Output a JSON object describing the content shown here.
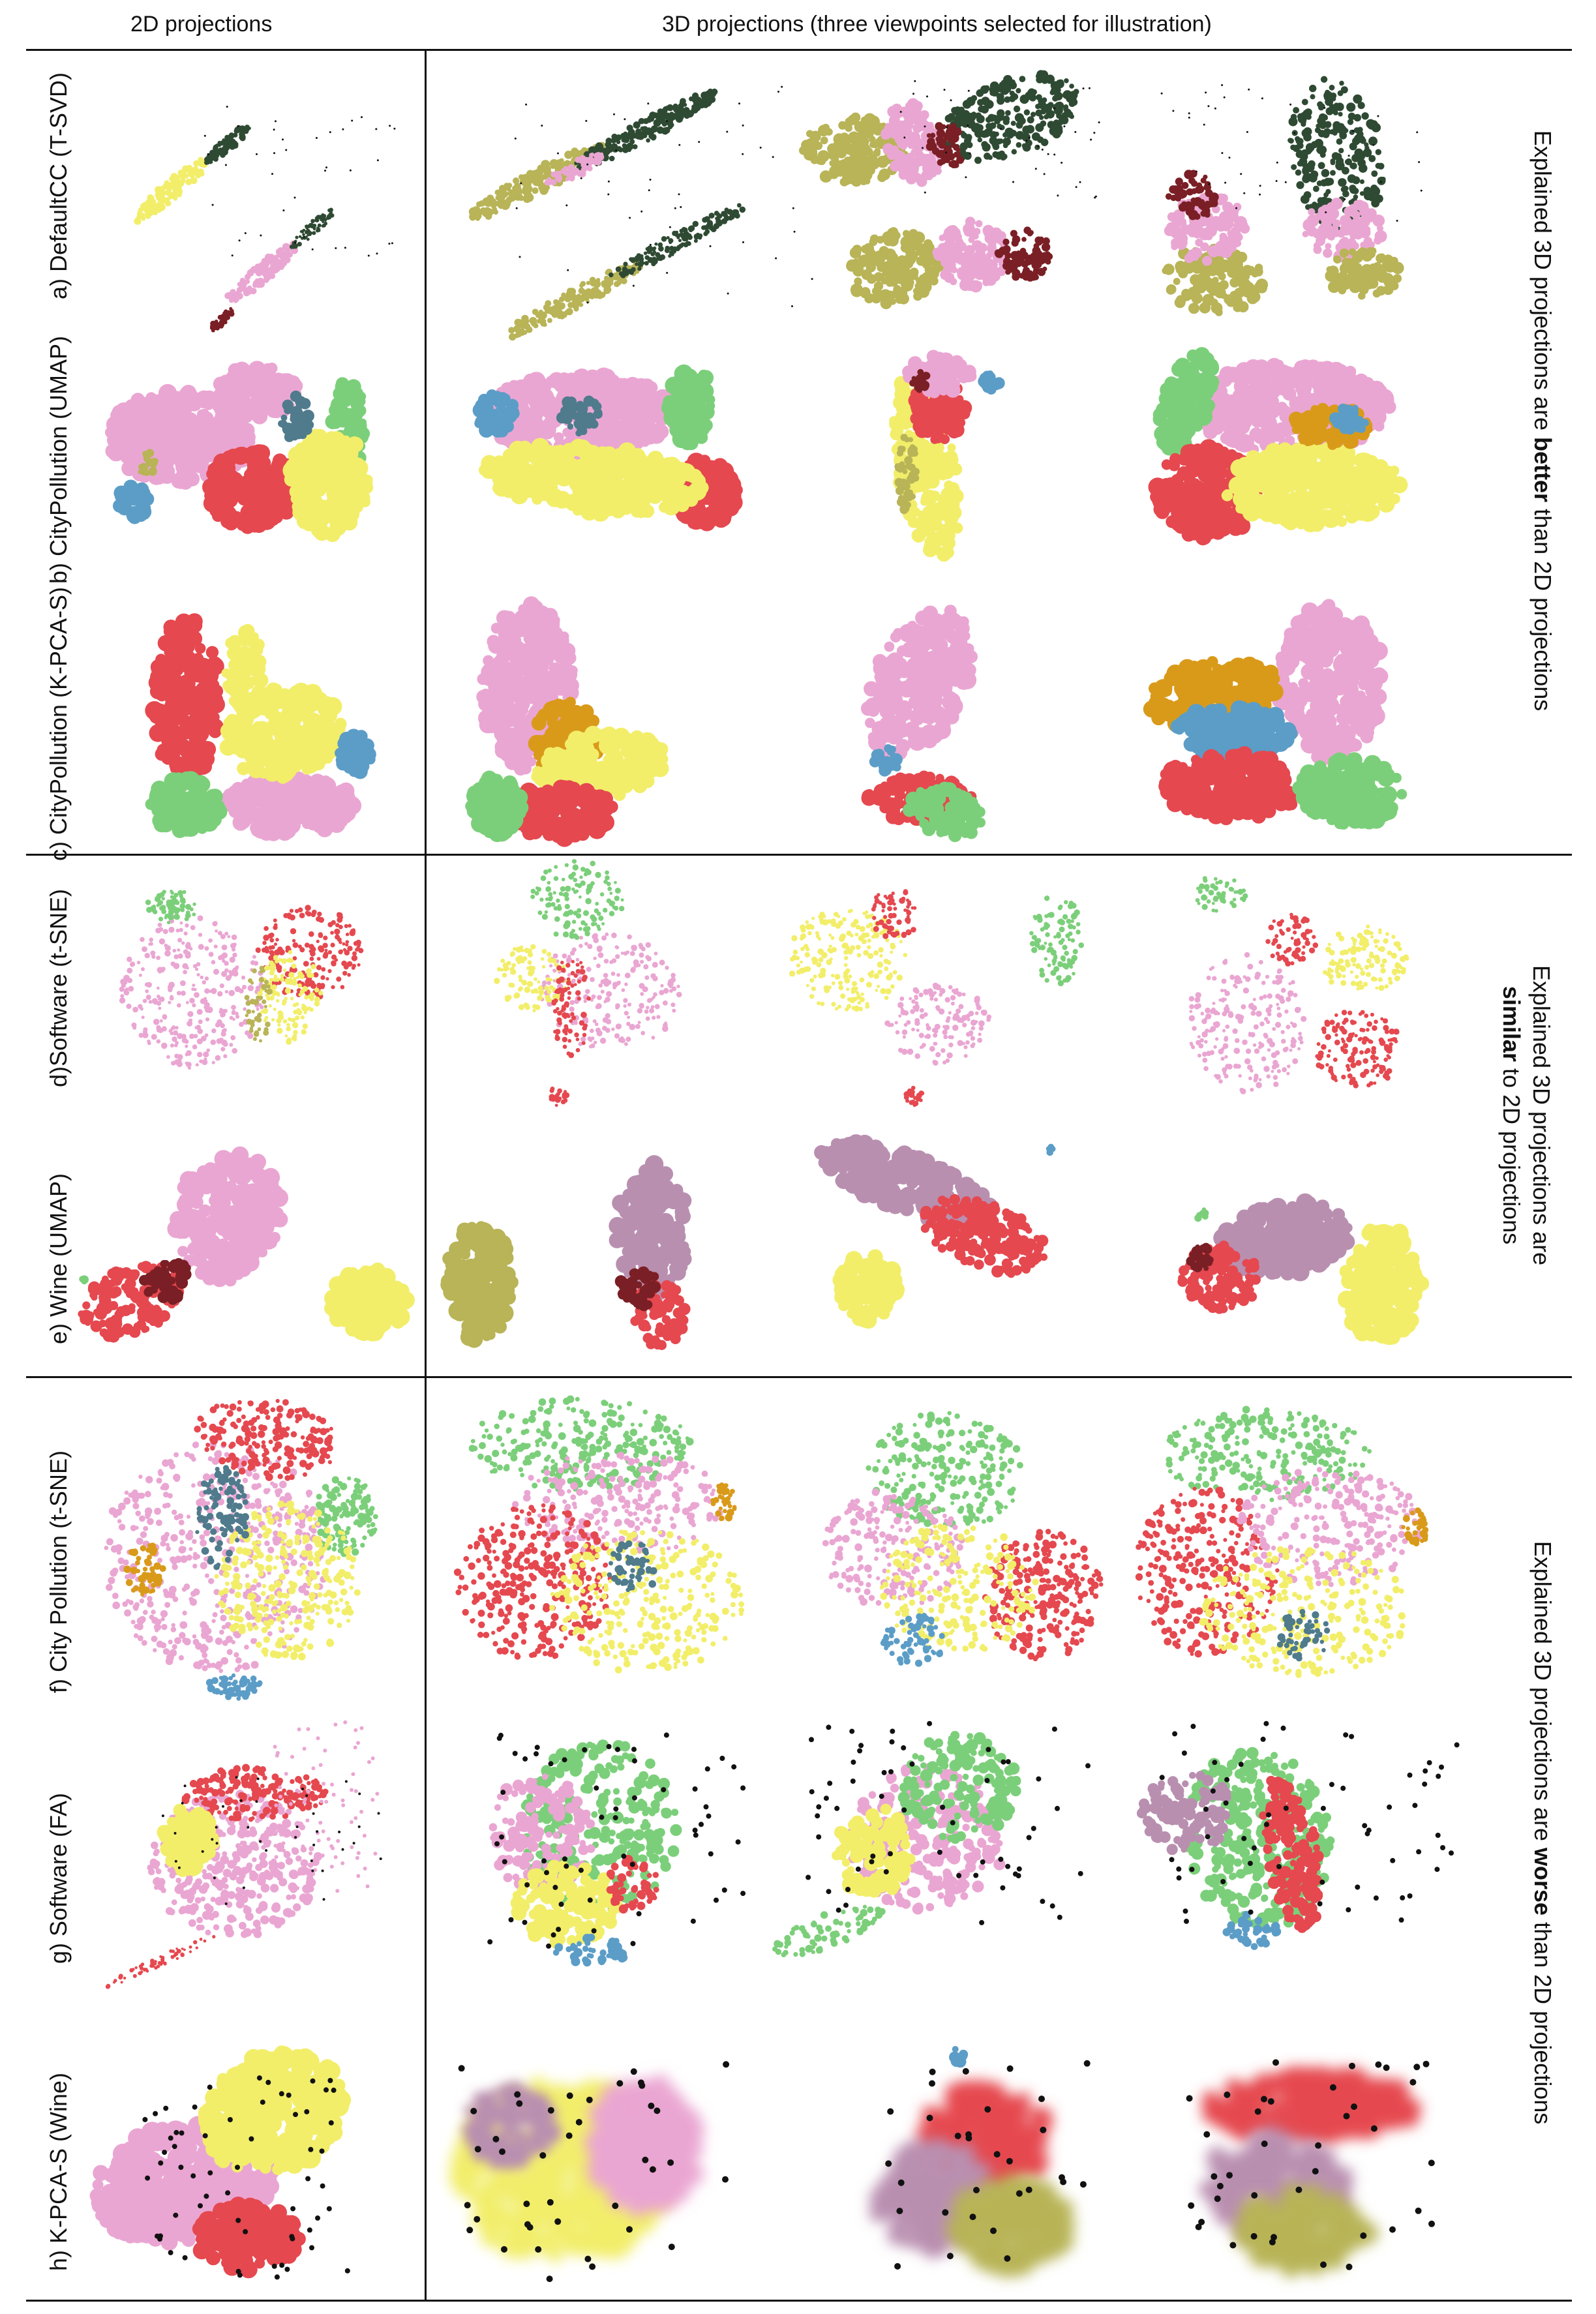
{
  "headers": {
    "col2d": "2D projections",
    "col3d": "3D projections (three viewpoints selected for illustration)"
  },
  "rows": [
    {
      "label": "a) DefaultCC (T-SVD)"
    },
    {
      "label": "b) CityPollution (UMAP)"
    },
    {
      "label": "c) CityPollution (K-PCA-S)"
    },
    {
      "label": "d)Software (t-SNE)"
    },
    {
      "label": "e) Wine (UMAP)"
    },
    {
      "label": "f) City Pollution (t-SNE)"
    },
    {
      "label": "g) Software (FA)"
    },
    {
      "label": "h) K-PCA-S (Wine)"
    }
  ],
  "groups": [
    {
      "pre": "Explained 3D projections are ",
      "bold": "better",
      "post": " than 2D projections"
    },
    {
      "line1": "Explained 3D projections are",
      "bold": "similar",
      "post": " to 2D projections"
    },
    {
      "pre": "Explained 3D projections are ",
      "bold": "worse",
      "post": " than 2D projections"
    }
  ],
  "colors": {
    "pink": "#eaa6d2",
    "yellow": "#f2ee6a",
    "red": "#e5484f",
    "green": "#7ccf7a",
    "blue": "#5b9dc7",
    "orange": "#d99a1a",
    "olive": "#b8b457",
    "darkgreen": "#2f4a33",
    "maroon": "#7a1f25",
    "mauve": "#b98fb0",
    "teal": "#4f7b8c",
    "black": "#111111"
  }
}
